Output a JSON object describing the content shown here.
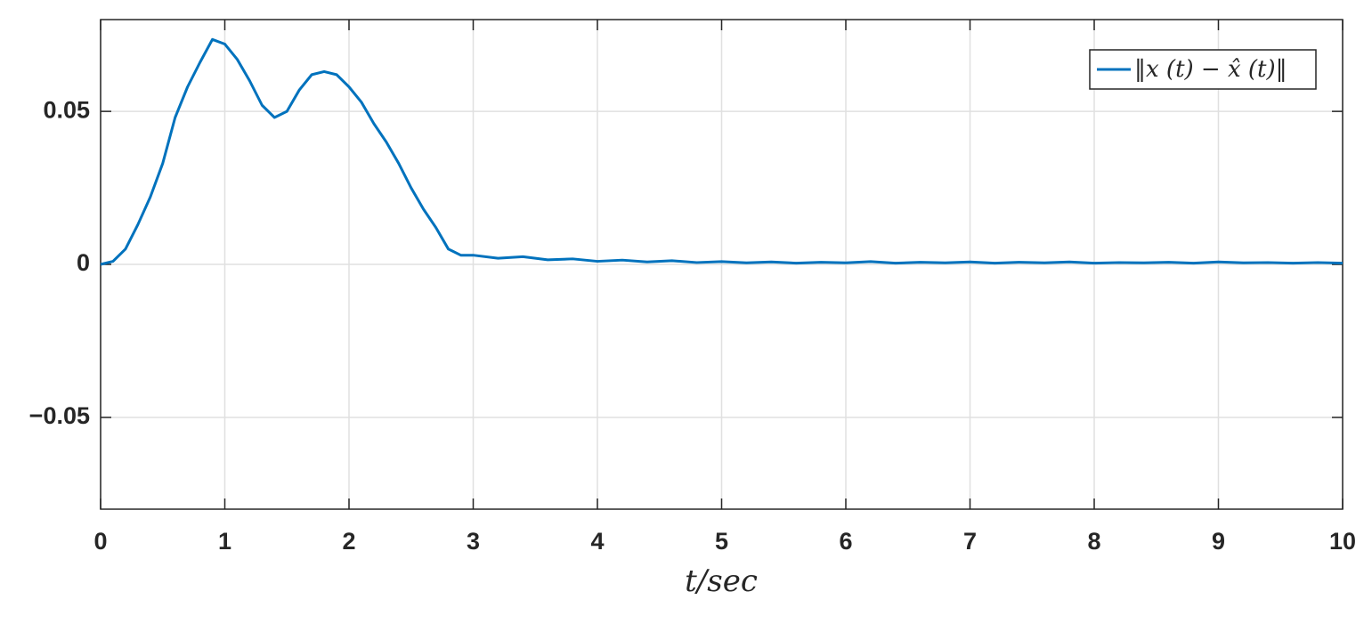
{
  "chart_data": {
    "type": "line",
    "xlabel": "t/sec",
    "x": [
      0,
      0.1,
      0.2,
      0.3,
      0.4,
      0.5,
      0.6,
      0.7,
      0.8,
      0.9,
      1.0,
      1.1,
      1.2,
      1.3,
      1.4,
      1.5,
      1.6,
      1.7,
      1.8,
      1.9,
      2.0,
      2.1,
      2.2,
      2.3,
      2.4,
      2.5,
      2.6,
      2.7,
      2.8,
      2.9,
      3.0,
      3.2,
      3.4,
      3.6,
      3.8,
      4.0,
      4.2,
      4.4,
      4.6,
      4.8,
      5.0,
      5.2,
      5.4,
      5.6,
      5.8,
      6.0,
      6.2,
      6.4,
      6.6,
      6.8,
      7.0,
      7.2,
      7.4,
      7.6,
      7.8,
      8.0,
      8.2,
      8.4,
      8.6,
      8.8,
      9.0,
      9.2,
      9.4,
      9.6,
      9.8,
      10.0
    ],
    "series": [
      {
        "name": "‖x (t) − x̂ (t)‖",
        "color": "#0072bd",
        "values": [
          0,
          0.001,
          0.005,
          0.013,
          0.022,
          0.033,
          0.048,
          0.058,
          0.066,
          0.0735,
          0.072,
          0.067,
          0.06,
          0.052,
          0.048,
          0.05,
          0.057,
          0.062,
          0.063,
          0.062,
          0.058,
          0.053,
          0.046,
          0.04,
          0.033,
          0.025,
          0.018,
          0.012,
          0.005,
          0.003,
          0.003,
          0.002,
          0.0025,
          0.0015,
          0.0018,
          0.001,
          0.0014,
          0.0008,
          0.0012,
          0.0006,
          0.0009,
          0.0005,
          0.0008,
          0.0004,
          0.0007,
          0.0005,
          0.0009,
          0.0004,
          0.0007,
          0.0005,
          0.0008,
          0.0004,
          0.0007,
          0.0005,
          0.0008,
          0.0004,
          0.0006,
          0.0005,
          0.0007,
          0.0004,
          0.0008,
          0.0005,
          0.0006,
          0.0004,
          0.0006,
          0.0004
        ]
      }
    ],
    "xlim": [
      0,
      10
    ],
    "xticks": [
      0,
      1,
      2,
      3,
      4,
      5,
      6,
      7,
      8,
      9,
      10
    ],
    "ylim": [
      -0.08,
      0.08
    ],
    "yticks": [
      {
        "value": -0.05,
        "label": "−0.05"
      },
      0,
      0.05
    ],
    "grid": true,
    "legend": "upper right"
  }
}
